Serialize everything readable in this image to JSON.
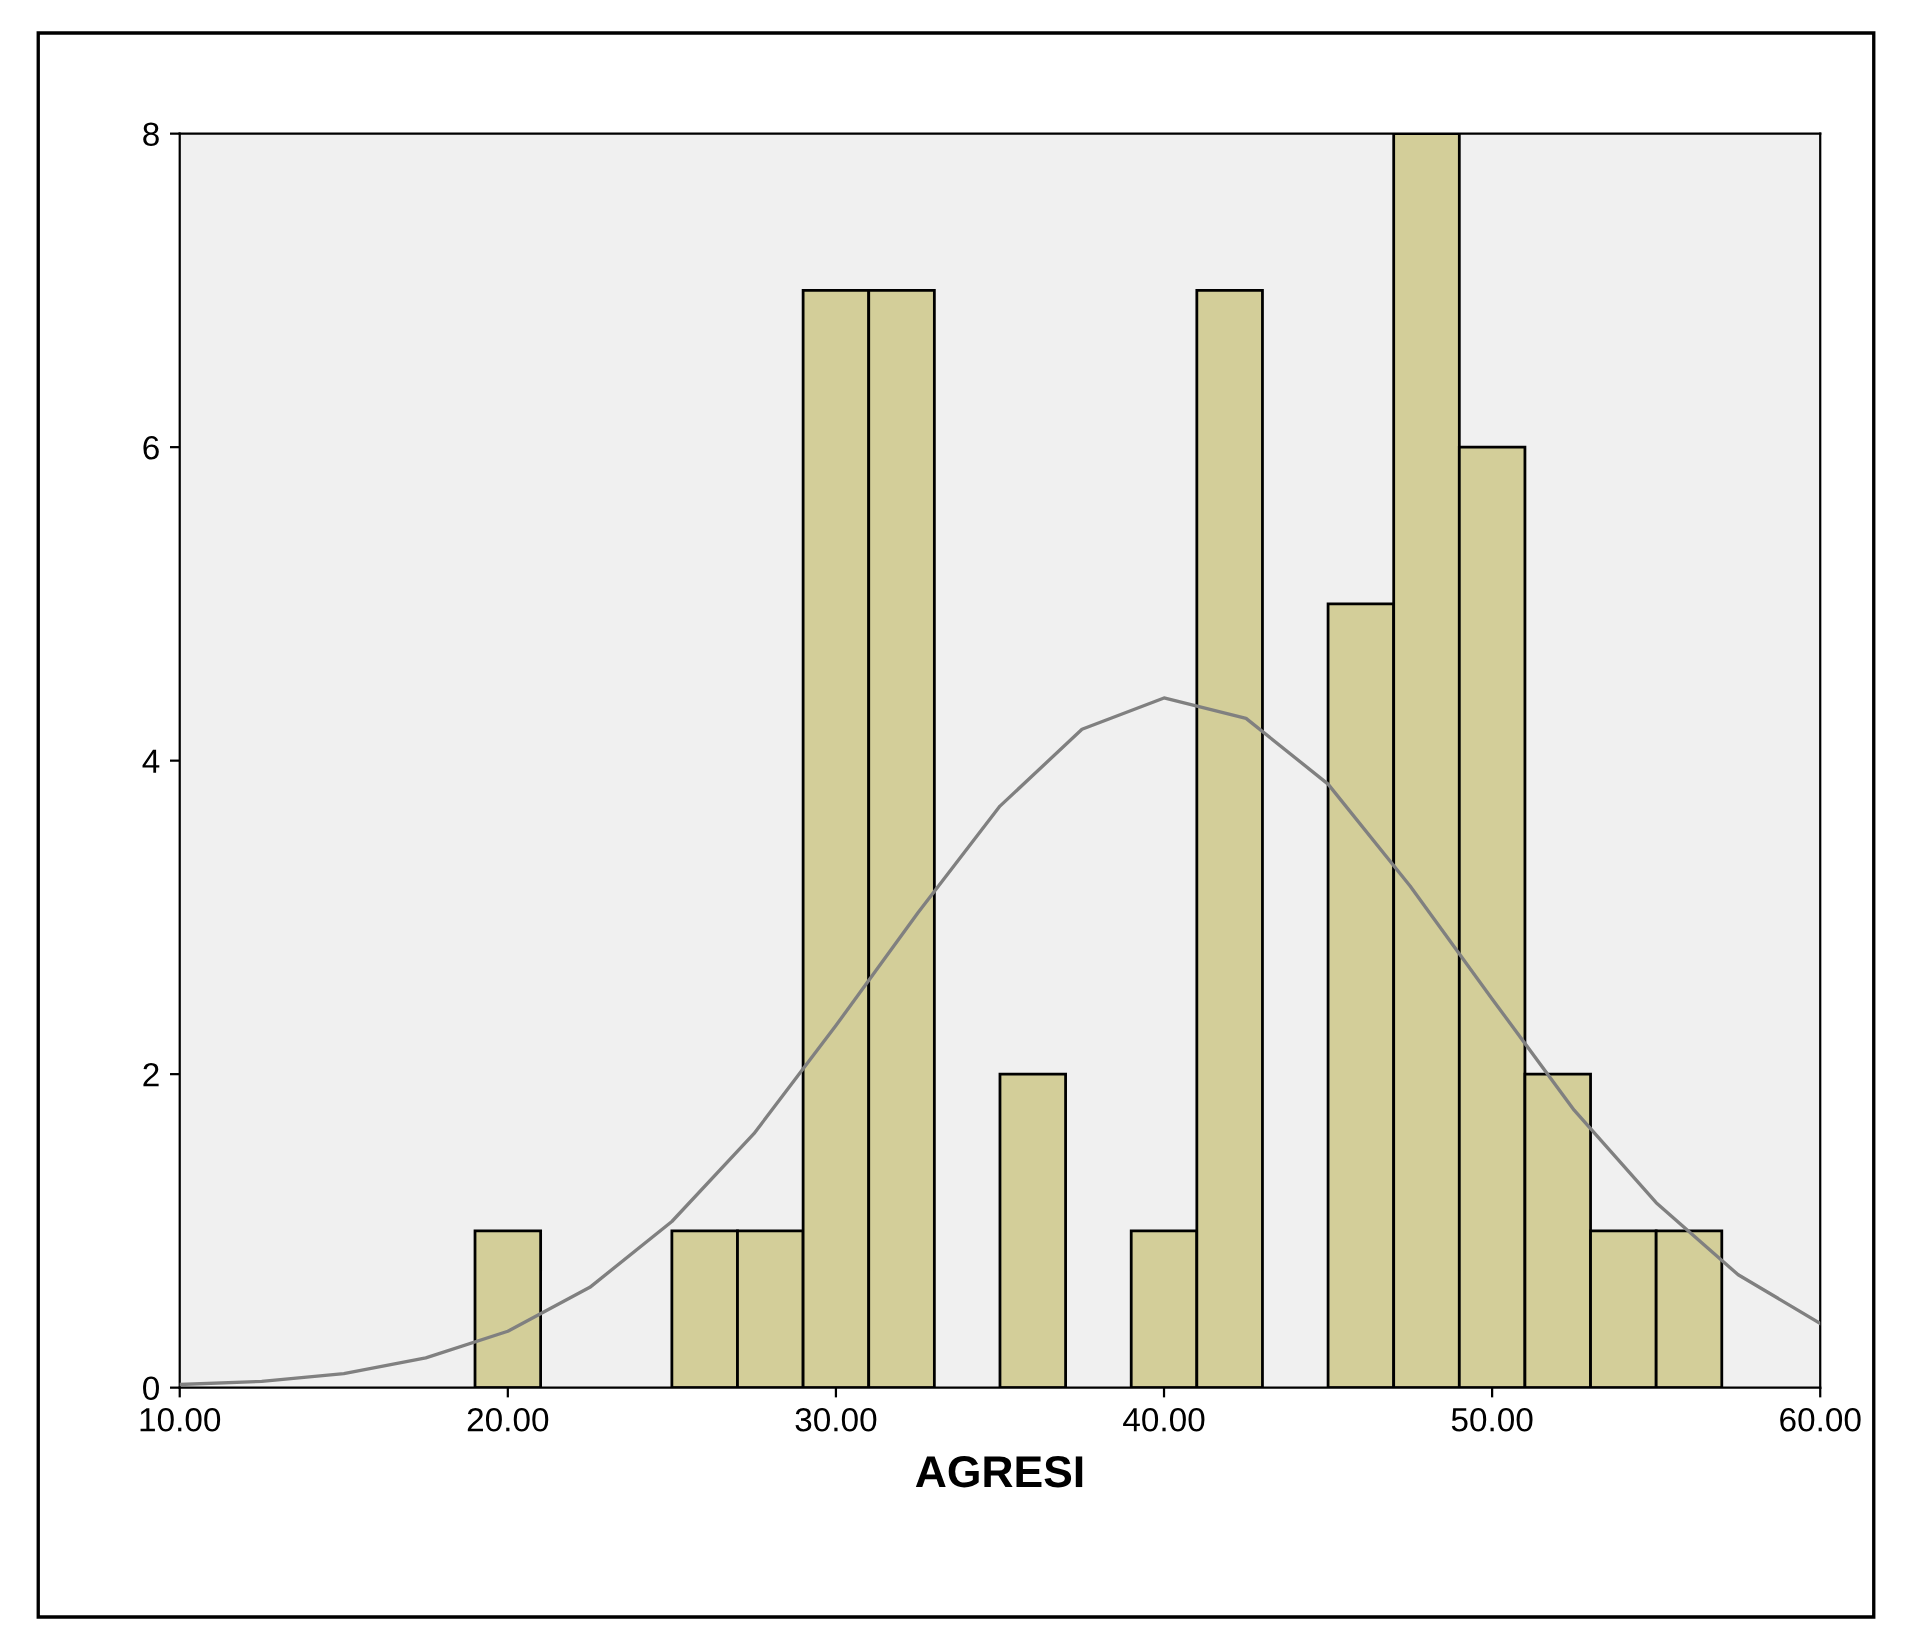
{
  "chart_data": {
    "type": "histogram",
    "xlabel": "AGRESI",
    "xlim": [
      10,
      60
    ],
    "ylim": [
      0,
      8
    ],
    "xticks": [
      {
        "value": 10,
        "label": "10.00"
      },
      {
        "value": 20,
        "label": "20.00"
      },
      {
        "value": 30,
        "label": "30.00"
      },
      {
        "value": 40,
        "label": "40.00"
      },
      {
        "value": 50,
        "label": "50.00"
      },
      {
        "value": 60,
        "label": "60.00"
      }
    ],
    "yticks": [
      0,
      2,
      4,
      6,
      8
    ],
    "grid": false,
    "series": [
      {
        "color": "#d3ce99",
        "bins": [
          19,
          21,
          23,
          25,
          27,
          29,
          31,
          33,
          35,
          37,
          39,
          41,
          43,
          45,
          47,
          49,
          51,
          53,
          55,
          57
        ],
        "values": [
          1,
          0,
          0,
          1,
          1,
          7,
          7,
          0,
          2,
          0,
          1,
          7,
          0,
          5,
          8,
          6,
          2,
          1,
          1
        ]
      },
      {
        "type": "line",
        "color": "#808080",
        "x": [
          10,
          12.5,
          15,
          17.5,
          20,
          22.5,
          25,
          27.5,
          30,
          32.5,
          35,
          37.5,
          40,
          42.5,
          45,
          47.5,
          50,
          52.5,
          55,
          57.5,
          60
        ],
        "values": [
          0.02,
          0.04,
          0.09,
          0.19,
          0.36,
          0.64,
          1.06,
          1.62,
          2.31,
          3.03,
          3.71,
          4.2,
          4.4,
          4.27,
          3.85,
          3.2,
          2.48,
          1.77,
          1.18,
          0.72,
          0.41
        ]
      }
    ]
  }
}
